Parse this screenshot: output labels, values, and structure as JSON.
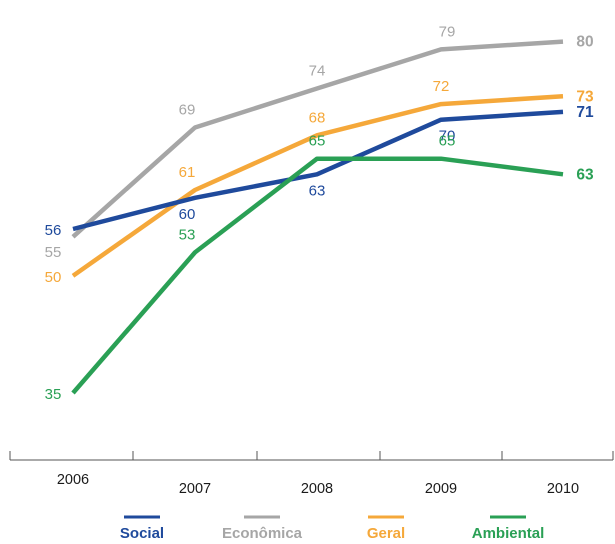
{
  "chart_data": {
    "type": "line",
    "x": [
      "2006",
      "2007",
      "2008",
      "2009",
      "2010"
    ],
    "ylim": [
      30,
      82
    ],
    "grid": false,
    "legend_position": "bottom",
    "series": [
      {
        "name": "Econômica",
        "color": "#a6a6a6",
        "values": [
          55,
          69,
          74,
          79,
          80
        ]
      },
      {
        "name": "Geral",
        "color": "#f5a83a",
        "values": [
          50,
          61,
          68,
          72,
          73
        ]
      },
      {
        "name": "Social",
        "color": "#1f4a9c",
        "values": [
          56,
          60,
          63,
          70,
          71
        ]
      },
      {
        "name": "Ambiental",
        "color": "#2aa055",
        "values": [
          35,
          53,
          65,
          65,
          63
        ]
      }
    ],
    "legend": [
      {
        "name": "Social",
        "color": "#1f4a9c"
      },
      {
        "name": "Econômica",
        "color": "#a6a6a6"
      },
      {
        "name": "Geral",
        "color": "#f5a83a"
      },
      {
        "name": "Ambiental",
        "color": "#2aa055"
      }
    ]
  }
}
